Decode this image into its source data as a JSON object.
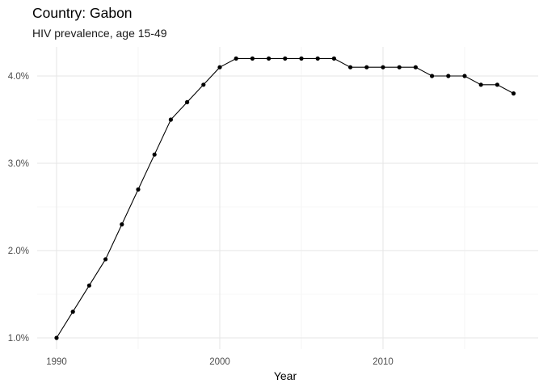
{
  "chart_data": {
    "type": "line",
    "title": "Country: Gabon",
    "subtitle": "HIV prevalence, age 15-49",
    "xlabel": "Year",
    "ylabel": "",
    "xlim": [
      1989,
      2019
    ],
    "ylim": [
      0.9,
      4.35
    ],
    "x_ticks": [
      1990,
      2000,
      2010
    ],
    "x_minor": [
      1995,
      2005,
      2015
    ],
    "y_ticks": [
      1.0,
      2.0,
      3.0,
      4.0
    ],
    "y_tick_labels": [
      "1.0%",
      "2.0%",
      "3.0%",
      "4.0%"
    ],
    "grid": true,
    "line_color": "#000000",
    "x": [
      1990,
      1991,
      1992,
      1993,
      1994,
      1995,
      1996,
      1997,
      1998,
      1999,
      2000,
      2001,
      2002,
      2003,
      2004,
      2005,
      2006,
      2007,
      2008,
      2009,
      2010,
      2011,
      2012,
      2013,
      2014,
      2015,
      2016,
      2017,
      2018
    ],
    "values": [
      1.0,
      1.3,
      1.6,
      1.9,
      2.3,
      2.7,
      3.1,
      3.5,
      3.7,
      3.9,
      4.1,
      4.2,
      4.2,
      4.2,
      4.2,
      4.2,
      4.2,
      4.2,
      4.1,
      4.1,
      4.1,
      4.1,
      4.1,
      4.0,
      4.0,
      4.0,
      3.9,
      3.9,
      3.8
    ]
  }
}
